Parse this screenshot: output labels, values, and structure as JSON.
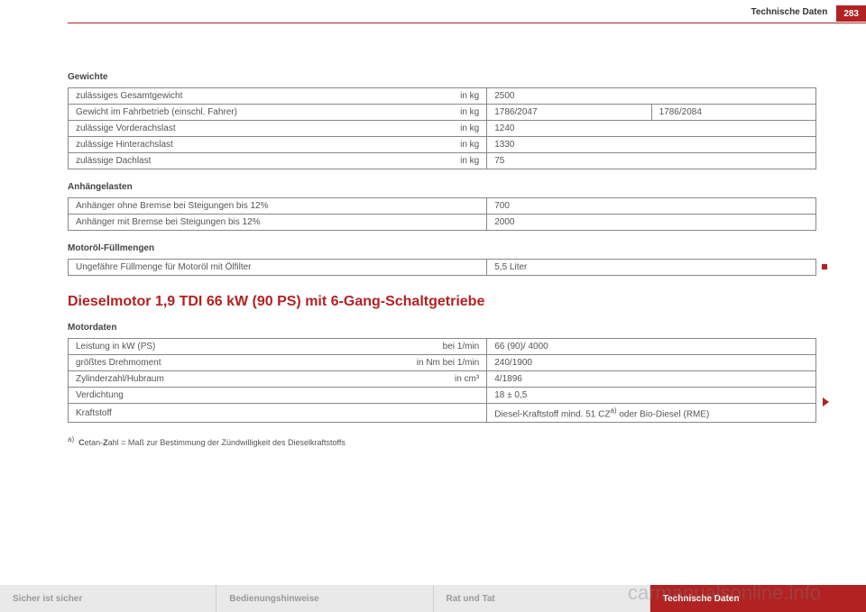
{
  "header": {
    "chapter": "Technische Daten",
    "page": "283"
  },
  "sections": {
    "gewichte": {
      "label": "Gewichte",
      "rows": [
        {
          "label": "zulässiges Gesamtgewicht",
          "unit": "in kg",
          "v1": "2500",
          "v2": ""
        },
        {
          "label": "Gewicht im Fahrbetrieb (einschl. Fahrer)",
          "unit": "in kg",
          "v1": "1786/2047",
          "v2": "1786/2084"
        },
        {
          "label": "zulässige Vorderachslast",
          "unit": "in kg",
          "v1": "1240",
          "v2": ""
        },
        {
          "label": "zulässige Hinterachslast",
          "unit": "in kg",
          "v1": "1330",
          "v2": ""
        },
        {
          "label": "zulässige Dachlast",
          "unit": "in kg",
          "v1": "75",
          "v2": ""
        }
      ]
    },
    "anhaengelasten": {
      "label": "Anhängelasten",
      "rows": [
        {
          "label": "Anhänger ohne Bremse bei Steigungen bis 12%",
          "v1": "700"
        },
        {
          "label": "Anhänger mit Bremse bei Steigungen bis 12%",
          "v1": "2000"
        }
      ]
    },
    "motoroel": {
      "label": "Motoröl-Füllmengen",
      "rows": [
        {
          "label": "Ungefähre Füllmenge für Motoröl mit Ölfilter",
          "v1": "5,5 Liter"
        }
      ]
    }
  },
  "engine": {
    "heading": "Dieselmotor 1,9 TDI 66 kW (90 PS) mit 6-Gang-Schaltgetriebe",
    "motordaten_label": "Motordaten",
    "rows": {
      "r1": {
        "label": "Leistung in kW (PS)",
        "unit": "bei 1/min",
        "val": "66 (90)/ 4000"
      },
      "r2": {
        "label": "größtes Drehmoment",
        "unit": "in Nm bei 1/min",
        "val": "240/1900"
      },
      "r3": {
        "label": "Zylinderzahl/Hubraum",
        "unit_html": "in cm³",
        "val": "4/1896"
      },
      "r4": {
        "label": "Verdichtung",
        "unit": "",
        "val": "18 ± 0,5"
      },
      "r5": {
        "label": "Kraftstoff",
        "unit": "",
        "val_html": "Diesel-Kraftstoff mind. 51 CZ<sup>a)</sup> oder Bio-Diesel (RME)"
      }
    },
    "footnote_html": "<sup>a)</sup>&nbsp;&nbsp;<b>C</b>etan-<b>Z</b>ahl = Maß zur Bestimmung der Zündwilligkeit des Dieselkraftstoffs"
  },
  "footer": {
    "tabs": [
      "Sicher ist sicher",
      "Bedienungshinweise",
      "Rat und Tat",
      "Technische Daten"
    ],
    "active_index": 3
  },
  "watermark": "carmanualsonline.info"
}
